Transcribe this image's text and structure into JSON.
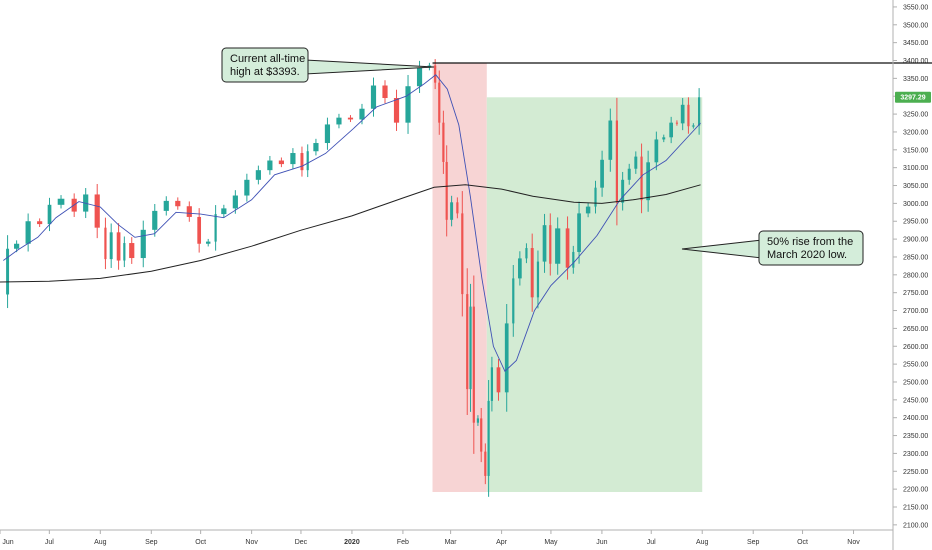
{
  "colors": {
    "up": "#26a69a",
    "down": "#ef5350",
    "ma20": "#3f51b5",
    "ma200": "#222222",
    "crash_zone": "#f7d4d4",
    "recovery_zone": "#d3ebd3",
    "callout_bg": "#d4edda",
    "last_price_bg": "#4caf50"
  },
  "annotations": {
    "ath_line1": "Current all-time",
    "ath_line2": "high at $3393.",
    "rise_line1": "50% rise from the",
    "rise_line2": "March 2020 low."
  },
  "last_price_label": "3297.29",
  "chart_data": {
    "type": "candlestick",
    "title": "",
    "y_axis": {
      "position": "right",
      "ylim": [
        2080,
        3575
      ],
      "ticks": [
        2100,
        2150,
        2200,
        2250,
        2300,
        2350,
        2400,
        2450,
        2500,
        2550,
        2600,
        2650,
        2700,
        2750,
        2800,
        2850,
        2900,
        2950,
        3000,
        3050,
        3100,
        3150,
        3200,
        3250,
        3300,
        3350,
        3400,
        3450,
        3500,
        3550
      ],
      "tick_labels": [
        "2100.00",
        "2150.00",
        "2200.00",
        "2250.00",
        "2300.00",
        "2350.00",
        "2400.00",
        "2450.00",
        "2500.00",
        "2550.00",
        "2600.00",
        "2650.00",
        "2700.00",
        "2750.00",
        "2800.00",
        "2850.00",
        "2900.00",
        "2950.00",
        "3000.00",
        "3050.00",
        "3100.00",
        "3150.00",
        "3200.00",
        "3250.00",
        "3300.00",
        "3350.00",
        "3400.00",
        "3450.00",
        "3500.00",
        "3550.00"
      ]
    },
    "x_axis": {
      "range": [
        "2019-06-01",
        "2020-11-25"
      ],
      "ticks": [
        {
          "date": "2019-06-01",
          "label": "Jun",
          "bold": false
        },
        {
          "date": "2019-07-01",
          "label": "Jul",
          "bold": false
        },
        {
          "date": "2019-08-01",
          "label": "Aug",
          "bold": false
        },
        {
          "date": "2019-09-01",
          "label": "Sep",
          "bold": false
        },
        {
          "date": "2019-10-01",
          "label": "Oct",
          "bold": false
        },
        {
          "date": "2019-11-01",
          "label": "Nov",
          "bold": false
        },
        {
          "date": "2019-12-01",
          "label": "Dec",
          "bold": false
        },
        {
          "date": "2020-01-01",
          "label": "2020",
          "bold": true
        },
        {
          "date": "2020-02-01",
          "label": "Feb",
          "bold": false
        },
        {
          "date": "2020-03-01",
          "label": "Mar",
          "bold": false
        },
        {
          "date": "2020-04-01",
          "label": "Apr",
          "bold": false
        },
        {
          "date": "2020-05-01",
          "label": "May",
          "bold": false
        },
        {
          "date": "2020-06-01",
          "label": "Jun",
          "bold": false
        },
        {
          "date": "2020-07-01",
          "label": "Jul",
          "bold": false
        },
        {
          "date": "2020-08-01",
          "label": "Aug",
          "bold": false
        },
        {
          "date": "2020-09-01",
          "label": "Sep",
          "bold": false
        },
        {
          "date": "2020-10-01",
          "label": "Oct",
          "bold": false
        },
        {
          "date": "2020-11-01",
          "label": "Nov",
          "bold": false
        }
      ]
    },
    "grid": false,
    "last_price": 3297.29,
    "horizontal_line": 3393,
    "zones": [
      {
        "name": "crash",
        "x_start": "2020-02-19",
        "x_end": "2020-03-23",
        "y_start": 2192,
        "y_end": 3393
      },
      {
        "name": "recovery",
        "x_start": "2020-03-23",
        "x_end": "2020-08-01",
        "y_start": 2192,
        "y_end": 3297
      }
    ],
    "close_series": [
      [
        "2019-06-03",
        2745
      ],
      [
        "2019-06-07",
        2873
      ],
      [
        "2019-06-14",
        2887
      ],
      [
        "2019-06-21",
        2950
      ],
      [
        "2019-06-28",
        2942
      ],
      [
        "2019-07-03",
        2996
      ],
      [
        "2019-07-12",
        3013
      ],
      [
        "2019-07-19",
        2977
      ],
      [
        "2019-07-26",
        3025
      ],
      [
        "2019-08-02",
        2932
      ],
      [
        "2019-08-05",
        2844
      ],
      [
        "2019-08-09",
        2919
      ],
      [
        "2019-08-14",
        2840
      ],
      [
        "2019-08-16",
        2889
      ],
      [
        "2019-08-23",
        2847
      ],
      [
        "2019-08-30",
        2926
      ],
      [
        "2019-09-06",
        2979
      ],
      [
        "2019-09-13",
        3007
      ],
      [
        "2019-09-20",
        2992
      ],
      [
        "2019-09-27",
        2962
      ],
      [
        "2019-10-02",
        2887
      ],
      [
        "2019-10-08",
        2893
      ],
      [
        "2019-10-11",
        2970
      ],
      [
        "2019-10-18",
        2986
      ],
      [
        "2019-10-25",
        3022
      ],
      [
        "2019-11-01",
        3066
      ],
      [
        "2019-11-08",
        3093
      ],
      [
        "2019-11-15",
        3120
      ],
      [
        "2019-11-22",
        3110
      ],
      [
        "2019-11-29",
        3141
      ],
      [
        "2019-12-03",
        3093
      ],
      [
        "2019-12-06",
        3146
      ],
      [
        "2019-12-13",
        3169
      ],
      [
        "2019-12-20",
        3221
      ],
      [
        "2019-12-27",
        3240
      ],
      [
        "2020-01-03",
        3235
      ],
      [
        "2020-01-10",
        3265
      ],
      [
        "2020-01-17",
        3330
      ],
      [
        "2020-01-24",
        3295
      ],
      [
        "2020-01-31",
        3226
      ],
      [
        "2020-02-07",
        3328
      ],
      [
        "2020-02-14",
        3380
      ],
      [
        "2020-02-19",
        3386
      ],
      [
        "2020-02-21",
        3338
      ],
      [
        "2020-02-24",
        3226
      ],
      [
        "2020-02-26",
        3116
      ],
      [
        "2020-02-28",
        2954
      ],
      [
        "2020-03-03",
        3003
      ],
      [
        "2020-03-06",
        2972
      ],
      [
        "2020-03-09",
        2746
      ],
      [
        "2020-03-12",
        2480
      ],
      [
        "2020-03-13",
        2711
      ],
      [
        "2020-03-16",
        2386
      ],
      [
        "2020-03-18",
        2398
      ],
      [
        "2020-03-20",
        2305
      ],
      [
        "2020-03-23",
        2237
      ],
      [
        "2020-03-24",
        2447
      ],
      [
        "2020-03-27",
        2541
      ],
      [
        "2020-04-01",
        2471
      ],
      [
        "2020-04-06",
        2664
      ],
      [
        "2020-04-09",
        2790
      ],
      [
        "2020-04-14",
        2846
      ],
      [
        "2020-04-17",
        2875
      ],
      [
        "2020-04-21",
        2737
      ],
      [
        "2020-04-24",
        2837
      ],
      [
        "2020-04-29",
        2939
      ],
      [
        "2020-05-01",
        2831
      ],
      [
        "2020-05-08",
        2930
      ],
      [
        "2020-05-13",
        2820
      ],
      [
        "2020-05-15",
        2864
      ],
      [
        "2020-05-20",
        2972
      ],
      [
        "2020-05-26",
        2991
      ],
      [
        "2020-05-29",
        3044
      ],
      [
        "2020-06-03",
        3122
      ],
      [
        "2020-06-08",
        3232
      ],
      [
        "2020-06-11",
        3002
      ],
      [
        "2020-06-15",
        3066
      ],
      [
        "2020-06-19",
        3097
      ],
      [
        "2020-06-23",
        3131
      ],
      [
        "2020-06-26",
        3009
      ],
      [
        "2020-07-01",
        3115
      ],
      [
        "2020-07-06",
        3179
      ],
      [
        "2020-07-10",
        3185
      ],
      [
        "2020-07-15",
        3226
      ],
      [
        "2020-07-17",
        3224
      ],
      [
        "2020-07-22",
        3276
      ],
      [
        "2020-07-24",
        3216
      ],
      [
        "2020-07-28",
        3218
      ],
      [
        "2020-07-31",
        3297
      ]
    ],
    "series": [
      {
        "values_ref": "ma20",
        "type": "line"
      },
      {
        "values_ref": "ma200",
        "type": "line"
      }
    ],
    "ma20": [
      [
        "2019-06-03",
        2840
      ],
      [
        "2019-06-12",
        2870
      ],
      [
        "2019-06-24",
        2905
      ],
      [
        "2019-07-05",
        2960
      ],
      [
        "2019-07-19",
        3005
      ],
      [
        "2019-08-01",
        2990
      ],
      [
        "2019-08-12",
        2940
      ],
      [
        "2019-08-22",
        2905
      ],
      [
        "2019-09-03",
        2915
      ],
      [
        "2019-09-16",
        2975
      ],
      [
        "2019-10-01",
        2970
      ],
      [
        "2019-10-15",
        2960
      ],
      [
        "2019-11-01",
        3010
      ],
      [
        "2019-11-15",
        3080
      ],
      [
        "2019-12-02",
        3105
      ],
      [
        "2019-12-16",
        3140
      ],
      [
        "2020-01-02",
        3210
      ],
      [
        "2020-01-16",
        3270
      ],
      [
        "2020-02-03",
        3300
      ],
      [
        "2020-02-14",
        3335
      ],
      [
        "2020-02-21",
        3360
      ],
      [
        "2020-02-28",
        3320
      ],
      [
        "2020-03-06",
        3220
      ],
      [
        "2020-03-13",
        3020
      ],
      [
        "2020-03-20",
        2790
      ],
      [
        "2020-03-27",
        2600
      ],
      [
        "2020-04-03",
        2530
      ],
      [
        "2020-04-10",
        2560
      ],
      [
        "2020-04-21",
        2700
      ],
      [
        "2020-05-01",
        2770
      ],
      [
        "2020-05-15",
        2835
      ],
      [
        "2020-05-29",
        2910
      ],
      [
        "2020-06-12",
        3010
      ],
      [
        "2020-06-26",
        3080
      ],
      [
        "2020-07-10",
        3120
      ],
      [
        "2020-07-24",
        3190
      ],
      [
        "2020-07-31",
        3225
      ]
    ],
    "ma200": [
      [
        "2019-06-01",
        2780
      ],
      [
        "2019-07-01",
        2782
      ],
      [
        "2019-08-01",
        2790
      ],
      [
        "2019-09-01",
        2810
      ],
      [
        "2019-10-01",
        2840
      ],
      [
        "2019-11-01",
        2880
      ],
      [
        "2019-12-01",
        2925
      ],
      [
        "2020-01-01",
        2965
      ],
      [
        "2020-02-01",
        3015
      ],
      [
        "2020-02-20",
        3045
      ],
      [
        "2020-03-10",
        3052
      ],
      [
        "2020-04-01",
        3040
      ],
      [
        "2020-04-20",
        3020
      ],
      [
        "2020-05-15",
        3003
      ],
      [
        "2020-06-01",
        3000
      ],
      [
        "2020-06-20",
        3010
      ],
      [
        "2020-07-10",
        3025
      ],
      [
        "2020-07-31",
        3052
      ]
    ]
  }
}
